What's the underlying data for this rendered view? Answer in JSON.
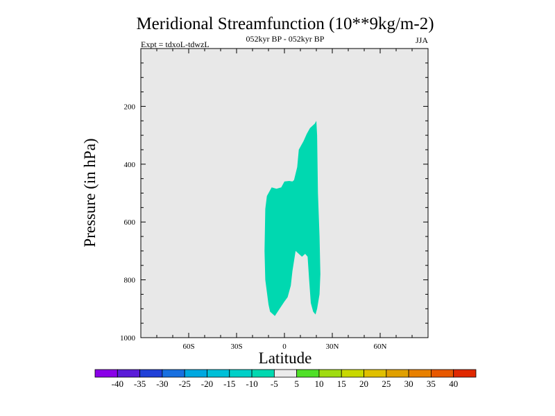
{
  "chart_data": {
    "type": "contour",
    "title": "Meridional Streamfunction (10**9kg/m-2)",
    "subtitle_center": "052kyr BP - 052kyr BP",
    "subtitle_left": "Expt = tdxoL-tdwzL",
    "subtitle_right": "JJA",
    "xlabel": "Latitude",
    "ylabel": "Pressure (in hPa)",
    "xlim": [
      -90,
      90
    ],
    "ylim": [
      1000,
      0
    ],
    "y_reversed": true,
    "background_color": "#e8e8e8",
    "x_ticks": [
      {
        "value": -60,
        "label": "60S"
      },
      {
        "value": -30,
        "label": "30S"
      },
      {
        "value": 0,
        "label": "0"
      },
      {
        "value": 30,
        "label": "30N"
      },
      {
        "value": 60,
        "label": "60N"
      }
    ],
    "y_ticks": [
      {
        "value": 200,
        "label": "200"
      },
      {
        "value": 400,
        "label": "400"
      },
      {
        "value": 600,
        "label": "600"
      },
      {
        "value": 800,
        "label": "800"
      },
      {
        "value": 1000,
        "label": "1000"
      }
    ],
    "filled_regions": [
      {
        "level_range": [
          -10,
          -5
        ],
        "color": "#00d8b0",
        "points": [
          [
            -12,
            555
          ],
          [
            -11,
            510
          ],
          [
            -8,
            480
          ],
          [
            -5,
            485
          ],
          [
            -2,
            480
          ],
          [
            0,
            460
          ],
          [
            3,
            458
          ],
          [
            5,
            460
          ],
          [
            6,
            455
          ],
          [
            8,
            410
          ],
          [
            9,
            350
          ],
          [
            12,
            320
          ],
          [
            14,
            295
          ],
          [
            16,
            275
          ],
          [
            19,
            260
          ],
          [
            20,
            250
          ],
          [
            20.5,
            300
          ],
          [
            21,
            500
          ],
          [
            22,
            650
          ],
          [
            22.5,
            780
          ],
          [
            22,
            850
          ],
          [
            20.5,
            900
          ],
          [
            19.5,
            920
          ],
          [
            18,
            910
          ],
          [
            16.5,
            880
          ],
          [
            15.5,
            800
          ],
          [
            14.5,
            720
          ],
          [
            13,
            710
          ],
          [
            11,
            720
          ],
          [
            9,
            710
          ],
          [
            7,
            700
          ],
          [
            5,
            770
          ],
          [
            4,
            820
          ],
          [
            2,
            860
          ],
          [
            0,
            875
          ],
          [
            -3,
            900
          ],
          [
            -6,
            925
          ],
          [
            -9,
            910
          ],
          [
            -10,
            885
          ],
          [
            -12,
            800
          ],
          [
            -12.5,
            700
          ]
        ]
      }
    ],
    "colorbar": {
      "colors": [
        "#8a00e8",
        "#5a1cd8",
        "#2040d8",
        "#1870e0",
        "#00a8e0",
        "#00c0d8",
        "#00d0c8",
        "#00d8b0",
        "#ebebeb",
        "#50e028",
        "#a0dc10",
        "#c8d800",
        "#e0c000",
        "#e0a000",
        "#e88000",
        "#e85800",
        "#e02800"
      ],
      "labels": [
        "-40",
        "-35",
        "-30",
        "-25",
        "-20",
        "-15",
        "-10",
        "-5",
        "5",
        "10",
        "15",
        "20",
        "25",
        "30",
        "35",
        "40"
      ]
    }
  }
}
